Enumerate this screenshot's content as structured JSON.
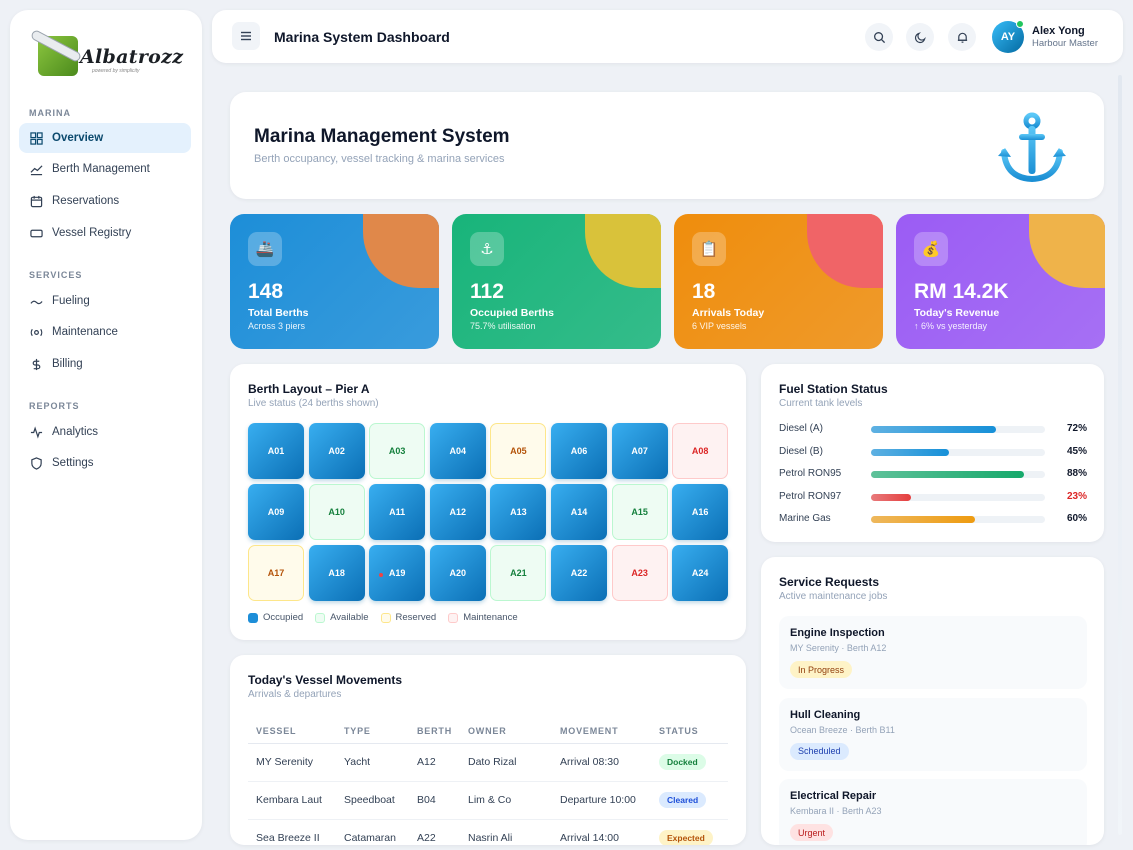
{
  "brand": {
    "name": "Albatrozz",
    "tagline": "powered by simplicity"
  },
  "sidebar": {
    "sections": [
      {
        "label": "MARINA",
        "items": [
          {
            "label": "Overview",
            "icon": "grid-icon",
            "active": true
          },
          {
            "label": "Berth Management",
            "icon": "chart-line-icon"
          },
          {
            "label": "Reservations",
            "icon": "calendar-icon"
          },
          {
            "label": "Vessel Registry",
            "icon": "card-icon"
          }
        ]
      },
      {
        "label": "SERVICES",
        "items": [
          {
            "label": "Fueling",
            "icon": "fuel-icon"
          },
          {
            "label": "Maintenance",
            "icon": "wrench-icon"
          },
          {
            "label": "Billing",
            "icon": "dollar-icon"
          }
        ]
      },
      {
        "label": "REPORTS",
        "items": [
          {
            "label": "Analytics",
            "icon": "pulse-icon"
          },
          {
            "label": "Settings",
            "icon": "shield-icon"
          }
        ]
      }
    ]
  },
  "header": {
    "title": "Marina System Dashboard",
    "user": {
      "initials": "AY",
      "name": "Alex Yong",
      "role": "Harbour Master"
    }
  },
  "hero": {
    "title": "Marina Management System",
    "subtitle": "Berth occupancy, vessel tracking & marina services"
  },
  "stats": [
    {
      "value": "148",
      "label": "Total Berths",
      "sub": "Across 3 piers",
      "icon": "ship-icon",
      "bg": "#1d8ed8",
      "blob": "#e0884a"
    },
    {
      "value": "112",
      "label": "Occupied Berths",
      "sub": "75.7% utilisation",
      "icon": "anchor-icon",
      "bg": "#18b47a",
      "blob": "#d9c23a"
    },
    {
      "value": "18",
      "label": "Arrivals Today",
      "sub": "6 VIP vessels",
      "icon": "clipboard-icon",
      "bg": "#ef8d0c",
      "blob": "#f06467"
    },
    {
      "value": "RM 14.2K",
      "label": "Today's Revenue",
      "sub": "↑ 6% vs yesterday",
      "icon": "money-bag-icon",
      "bg": "#9b5cf4",
      "blob": "#efb34a"
    }
  ],
  "berth_layout": {
    "title": "Berth Layout – Pier A",
    "subtitle": "Live status (24 berths shown)",
    "berths": [
      {
        "id": "A01",
        "status": "occupied"
      },
      {
        "id": "A02",
        "status": "occupied"
      },
      {
        "id": "A03",
        "status": "available"
      },
      {
        "id": "A04",
        "status": "occupied"
      },
      {
        "id": "A05",
        "status": "reserved"
      },
      {
        "id": "A06",
        "status": "occupied"
      },
      {
        "id": "A07",
        "status": "occupied"
      },
      {
        "id": "A08",
        "status": "maintenance"
      },
      {
        "id": "A09",
        "status": "occupied"
      },
      {
        "id": "A10",
        "status": "available"
      },
      {
        "id": "A11",
        "status": "occupied"
      },
      {
        "id": "A12",
        "status": "occupied"
      },
      {
        "id": "A13",
        "status": "occupied"
      },
      {
        "id": "A14",
        "status": "occupied"
      },
      {
        "id": "A15",
        "status": "available"
      },
      {
        "id": "A16",
        "status": "occupied"
      },
      {
        "id": "A17",
        "status": "reserved"
      },
      {
        "id": "A18",
        "status": "occupied"
      },
      {
        "id": "A19",
        "status": "occupied"
      },
      {
        "id": "A20",
        "status": "occupied"
      },
      {
        "id": "A21",
        "status": "available"
      },
      {
        "id": "A22",
        "status": "occupied"
      },
      {
        "id": "A23",
        "status": "maintenance"
      },
      {
        "id": "A24",
        "status": "occupied"
      }
    ],
    "legend": [
      {
        "label": "Occupied",
        "color": "#1d8ed8"
      },
      {
        "label": "Available",
        "color": "#eefcf3"
      },
      {
        "label": "Reserved",
        "color": "#fffbeb"
      },
      {
        "label": "Maintenance",
        "color": "#fef2f2"
      }
    ]
  },
  "fuel": {
    "title": "Fuel Station Status",
    "subtitle": "Current tank levels",
    "tanks": [
      {
        "name": "Diesel (A)",
        "percent": 72,
        "label": "72%",
        "color": "#1690d8"
      },
      {
        "name": "Diesel (B)",
        "percent": 45,
        "label": "45%",
        "color": "#1690d8"
      },
      {
        "name": "Petrol RON95",
        "percent": 88,
        "label": "88%",
        "color": "#16a96b"
      },
      {
        "name": "Petrol RON97",
        "percent": 23,
        "label": "23%",
        "color": "#e53e3e"
      },
      {
        "name": "Marine Gas",
        "percent": 60,
        "label": "60%",
        "color": "#ee9b10"
      }
    ]
  },
  "movements": {
    "title": "Today's Vessel Movements",
    "subtitle": "Arrivals & departures",
    "columns": [
      "VESSEL",
      "TYPE",
      "BERTH",
      "OWNER",
      "MOVEMENT",
      "STATUS"
    ],
    "rows": [
      {
        "vessel": "MY Serenity",
        "type": "Yacht",
        "berth": "A12",
        "owner": "Dato Rizal",
        "movement": "Arrival 08:30",
        "status": "Docked",
        "status_bg": "#dcfce7",
        "status_fg": "#15803d"
      },
      {
        "vessel": "Kembara Laut",
        "type": "Speedboat",
        "berth": "B04",
        "owner": "Lim & Co",
        "movement": "Departure 10:00",
        "status": "Cleared",
        "status_bg": "#dbeafe",
        "status_fg": "#1d4ed8"
      },
      {
        "vessel": "Sea Breeze II",
        "type": "Catamaran",
        "berth": "A22",
        "owner": "Nasrin Ali",
        "movement": "Arrival 14:00",
        "status": "Expected",
        "status_bg": "#fef3c7",
        "status_fg": "#b45309"
      }
    ]
  },
  "services": {
    "title": "Service Requests",
    "subtitle": "Active maintenance jobs",
    "requests": [
      {
        "title": "Engine Inspection",
        "sub": "MY Serenity · Berth A12",
        "status": "In Progress",
        "bg": "#fef3c7",
        "fg": "#92400e"
      },
      {
        "title": "Hull Cleaning",
        "sub": "Ocean Breeze · Berth B11",
        "status": "Scheduled",
        "bg": "#dbeafe",
        "fg": "#1e40af"
      },
      {
        "title": "Electrical Repair",
        "sub": "Kembara II · Berth A23",
        "status": "Urgent",
        "bg": "#fee2e2",
        "fg": "#b91c1c"
      }
    ]
  }
}
